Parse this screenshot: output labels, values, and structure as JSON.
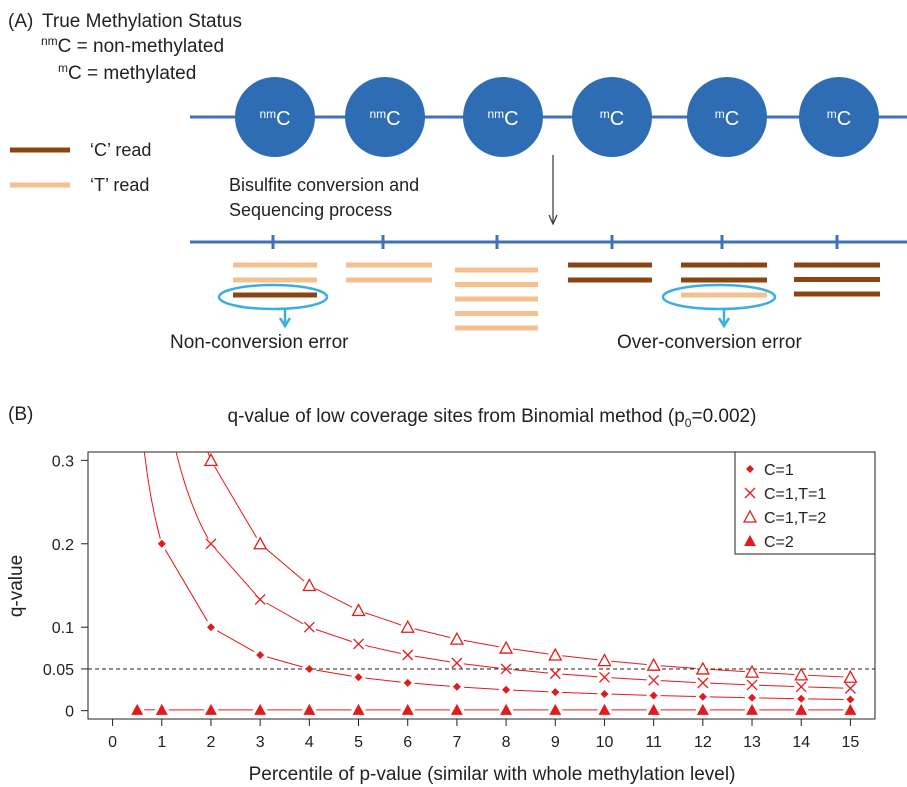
{
  "panelA": {
    "label": "(A)",
    "title": "True Methylation Status",
    "legend_def": {
      "nm_sup": "nm",
      "nm_rest": "C = non-methylated",
      "m_sup": "m",
      "m_rest": "C = methylated"
    },
    "read_legend": {
      "c_read": "‘C’ read",
      "t_read": "‘T’ read"
    },
    "process_line1": "Bisulfite conversion and",
    "process_line2": "Sequencing process",
    "sites": [
      {
        "sup": "nm",
        "base": "C"
      },
      {
        "sup": "nm",
        "base": "C"
      },
      {
        "sup": "nm",
        "base": "C"
      },
      {
        "sup": "m",
        "base": "C"
      },
      {
        "sup": "m",
        "base": "C"
      },
      {
        "sup": "m",
        "base": "C"
      }
    ],
    "read_stacks": [
      [
        "T",
        "T",
        "C"
      ],
      [
        "T",
        "T"
      ],
      [
        "T",
        "T",
        "T",
        "T",
        "T"
      ],
      [
        "C",
        "C"
      ],
      [
        "C",
        "C",
        "T"
      ],
      [
        "C",
        "C",
        "C"
      ]
    ],
    "non_conversion_label": "Non-conversion error",
    "over_conversion_label": "Over-conversion error",
    "colors": {
      "c_read": "#8b4513",
      "t_read": "#f5c08e",
      "circle": "#2e6db4",
      "line": "#3f72b8",
      "highlight": "#3aaee0"
    }
  },
  "panelB": {
    "label": "(B)",
    "title_main": "q-value of low coverage sites from Binomial method (p",
    "title_sub": "0",
    "title_end": "=0.002)"
  },
  "chart_data": {
    "type": "line",
    "xlabel": "Percentile of p-value (similar with whole methylation level)",
    "ylabel": "q-value",
    "xlim": [
      -0.5,
      15.5
    ],
    "ylim": [
      -0.01,
      0.31
    ],
    "x_ticks": [
      0,
      1,
      2,
      3,
      4,
      5,
      6,
      7,
      8,
      9,
      10,
      11,
      12,
      13,
      14,
      15
    ],
    "y_ticks": [
      {
        "value": 0,
        "label": "0"
      },
      {
        "value": 0.05,
        "label": "0.05"
      },
      {
        "value": 0.1,
        "label": "0.1"
      },
      {
        "value": 0.2,
        "label": "0.2"
      },
      {
        "value": 0.3,
        "label": "0.3"
      }
    ],
    "reference_line": 0.05,
    "legend_position": "top-right",
    "series": [
      {
        "name": "C=1",
        "marker": "diamond",
        "curve": [
          [
            0.3,
            0.2
          ],
          [
            0.45,
            0.2
          ]
        ],
        "x": [
          1,
          2,
          3,
          4,
          5,
          6,
          7,
          8,
          9,
          10,
          11,
          12,
          13,
          14,
          15
        ],
        "values": [
          0.2,
          0.1,
          0.0667,
          0.05,
          0.04,
          0.0333,
          0.0286,
          0.025,
          0.0222,
          0.02,
          0.0182,
          0.0167,
          0.0154,
          0.0143,
          0.0133
        ]
      },
      {
        "name": "C=1,T=1",
        "marker": "cross",
        "x": [
          2,
          3,
          4,
          5,
          6,
          7,
          8,
          9,
          10,
          11,
          12,
          13,
          14,
          15
        ],
        "values": [
          0.2,
          0.1333,
          0.1,
          0.08,
          0.0667,
          0.0571,
          0.05,
          0.0444,
          0.04,
          0.0364,
          0.0333,
          0.0308,
          0.0286,
          0.0267
        ]
      },
      {
        "name": "C=1,T=2",
        "marker": "open-triangle",
        "x": [
          2,
          3,
          4,
          5,
          6,
          7,
          8,
          9,
          10,
          11,
          12,
          13,
          14,
          15
        ],
        "values": [
          0.3,
          0.2,
          0.15,
          0.12,
          0.1,
          0.0857,
          0.075,
          0.0667,
          0.06,
          0.0545,
          0.05,
          0.0462,
          0.0429,
          0.04
        ]
      },
      {
        "name": "C=2",
        "marker": "filled-triangle",
        "x": [
          0.5,
          1,
          2,
          3,
          4,
          5,
          6,
          7,
          8,
          9,
          10,
          11,
          12,
          13,
          14,
          15
        ],
        "values": [
          0.001,
          0.001,
          0.001,
          0.001,
          0.001,
          0.001,
          0.001,
          0.001,
          0.001,
          0.001,
          0.001,
          0.001,
          0.001,
          0.001,
          0.001,
          0.001
        ]
      }
    ],
    "series_color": "#e31a1c"
  }
}
